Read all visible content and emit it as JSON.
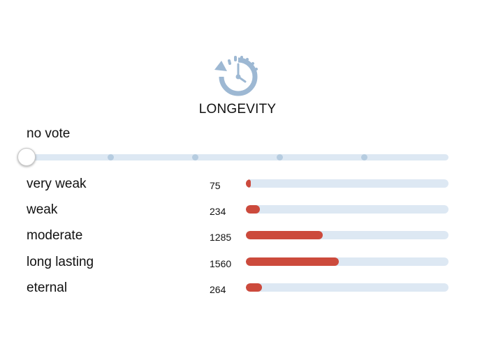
{
  "header": {
    "icon": "clock-history-icon",
    "title": "LONGEVITY"
  },
  "vote": {
    "label": "no vote",
    "slider_steps": 6,
    "selected_step": 0
  },
  "results": {
    "max": 1560,
    "rows": [
      {
        "label": "very weak",
        "count": "75",
        "value": 75
      },
      {
        "label": "weak",
        "count": "234",
        "value": 234
      },
      {
        "label": "moderate",
        "count": "1285",
        "value": 1285
      },
      {
        "label": "long lasting",
        "count": "1560",
        "value": 1560
      },
      {
        "label": "eternal",
        "count": "264",
        "value": 264
      }
    ]
  },
  "colors": {
    "accent": "#cc4a3c",
    "track": "#dde8f3",
    "icon": "#9db8d3"
  }
}
